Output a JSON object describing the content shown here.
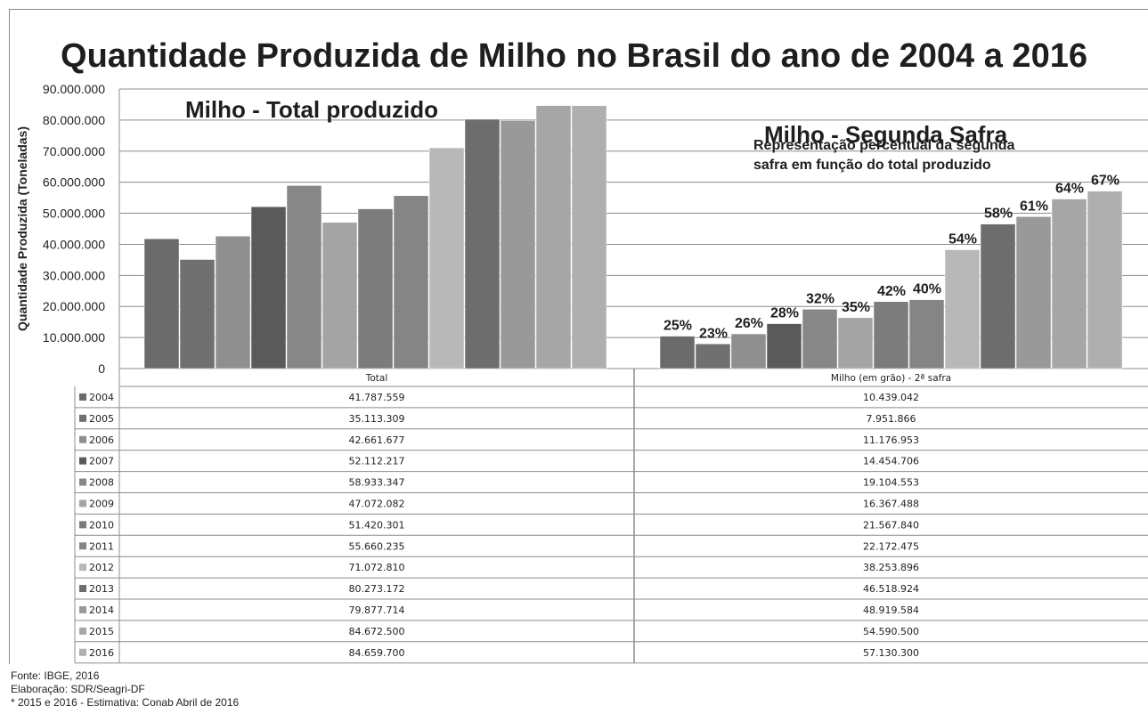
{
  "title": "Quantidade Produzida de Milho no Brasil do ano de 2004 a 2016",
  "chart_data": {
    "type": "bar",
    "ylabel": "Quantidade Produzida (Toneladas)",
    "ylim": [
      0,
      90000000
    ],
    "y_ticks": [
      "0",
      "10.000.000",
      "20.000.000",
      "30.000.000",
      "40.000.000",
      "50.000.000",
      "60.000.000",
      "70.000.000",
      "80.000.000",
      "90.000.000"
    ],
    "grid": true,
    "groups": [
      {
        "label": "Total",
        "panel_title": "Milho - Total produzido",
        "subtitle": "",
        "values": [
          41787559,
          35113309,
          42661677,
          52112217,
          58933347,
          47072082,
          51420301,
          55660235,
          71072810,
          80273172,
          79877714,
          84672500,
          84659700
        ],
        "display_values": [
          "41.787.559",
          "35.113.309",
          "42.661.677",
          "52.112.217",
          "58.933.347",
          "47.072.082",
          "51.420.301",
          "55.660.235",
          "71.072.810",
          "80.273.172",
          "79.877.714",
          "84.672.500",
          "84.659.700"
        ],
        "percent_labels": []
      },
      {
        "label": "Milho (em grão) - 2ª safra",
        "panel_title": "Milho - Segunda Safra",
        "subtitle": [
          "Representação percentual da segunda",
          "safra em função do total produzido"
        ],
        "values": [
          10439042,
          7951866,
          11176953,
          14454706,
          19104553,
          16367488,
          21567840,
          22172475,
          38253896,
          46518924,
          48919584,
          54590500,
          57130300
        ],
        "display_values": [
          "10.439.042",
          "7.951.866",
          "11.176.953",
          "14.454.706",
          "19.104.553",
          "16.367.488",
          "21.567.840",
          "22.172.475",
          "38.253.896",
          "46.518.924",
          "48.919.584",
          "54.590.500",
          "57.130.300"
        ],
        "percent_labels": [
          "25%",
          "23%",
          "26%",
          "28%",
          "32%",
          "35%",
          "42%",
          "40%",
          "54%",
          "58%",
          "61%",
          "64%",
          "67%"
        ]
      }
    ],
    "series": [
      {
        "name": "2004",
        "color": "#6b6b6b"
      },
      {
        "name": "2005",
        "color": "#707070"
      },
      {
        "name": "2006",
        "color": "#8f8f8f"
      },
      {
        "name": "2007",
        "color": "#5a5a5a"
      },
      {
        "name": "2008",
        "color": "#878787"
      },
      {
        "name": "2009",
        "color": "#a4a4a4"
      },
      {
        "name": "2010",
        "color": "#7c7c7c"
      },
      {
        "name": "2011",
        "color": "#858585"
      },
      {
        "name": "2012",
        "color": "#b8b8b8"
      },
      {
        "name": "2013",
        "color": "#6d6d6d"
      },
      {
        "name": "2014",
        "color": "#999999"
      },
      {
        "name": "2015",
        "color": "#a6a6a6"
      },
      {
        "name": "2016",
        "color": "#afafaf"
      }
    ]
  },
  "notes": [
    "Fonte: IBGE, 2016",
    "Elaboração: SDR/Seagri-DF",
    "* 2015 e 2016 - Estimativa: Conab Abril de 2016"
  ]
}
